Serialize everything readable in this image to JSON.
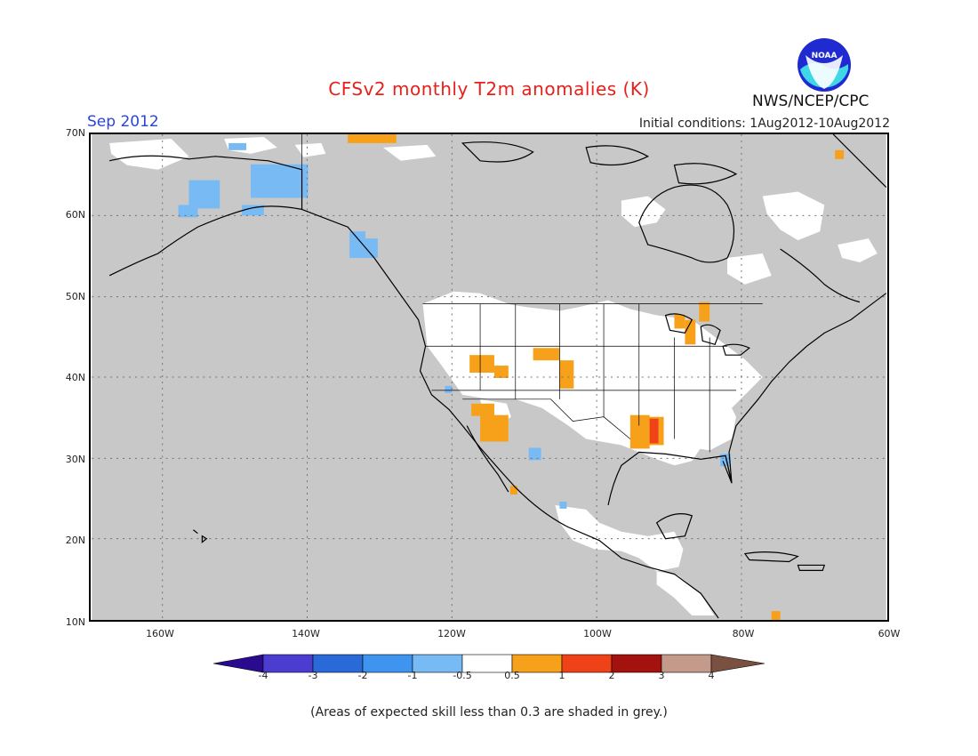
{
  "header": {
    "title": "CFSv2 monthly T2m anomalies (K)",
    "month": "Sep 2012",
    "initial_conditions": "Initial conditions: 1Aug2012-10Aug2012",
    "agency": "NWS/NCEP/CPC",
    "logo_text": "NOAA"
  },
  "axes": {
    "lat_labels": [
      "70N",
      "60N",
      "50N",
      "40N",
      "30N",
      "20N",
      "10N"
    ],
    "lon_labels": [
      "160W",
      "140W",
      "120W",
      "100W",
      "80W",
      "60W"
    ]
  },
  "colorbar": {
    "labels": [
      "-4",
      "-3",
      "-2",
      "-1",
      "-0.5",
      "0.5",
      "1",
      "2",
      "3",
      "4"
    ],
    "colors": [
      "#2a0a8e",
      "#4a3dd0",
      "#2a6ad8",
      "#3f94f0",
      "#78baf4",
      "#ffffff",
      "#f7a11a",
      "#f04218",
      "#a3120e",
      "#c49a8a",
      "#7a5040"
    ]
  },
  "colors": {
    "skill_grey": "#c8c8c8",
    "land_white": "#ffffff",
    "warm_1": "#f7a11a",
    "warm_2": "#f04218",
    "cool_1": "#78baf4",
    "coast": "#000000"
  },
  "footnote": "(Areas of expected skill less than 0.3 are shaded in grey.)"
}
